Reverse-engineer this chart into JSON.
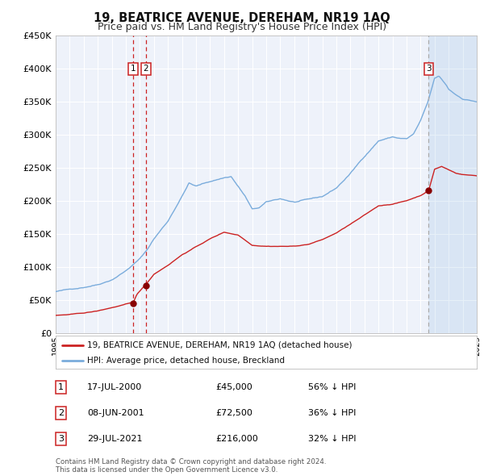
{
  "title": "19, BEATRICE AVENUE, DEREHAM, NR19 1AQ",
  "subtitle": "Price paid vs. HM Land Registry's House Price Index (HPI)",
  "ylim": [
    0,
    450000
  ],
  "yticks": [
    0,
    50000,
    100000,
    150000,
    200000,
    250000,
    300000,
    350000,
    400000,
    450000
  ],
  "ytick_labels": [
    "£0",
    "£50K",
    "£100K",
    "£150K",
    "£200K",
    "£250K",
    "£300K",
    "£350K",
    "£400K",
    "£450K"
  ],
  "hpi_color": "#7aacdc",
  "price_color": "#cc2222",
  "marker_color": "#880000",
  "vline_color": "#cc2222",
  "vline3_color": "#aaaaaa",
  "background_color": "#ffffff",
  "plot_bg_color": "#eef2fa",
  "grid_color": "#ffffff",
  "title_fontsize": 10.5,
  "subtitle_fontsize": 9,
  "legend_label_price": "19, BEATRICE AVENUE, DEREHAM, NR19 1AQ (detached house)",
  "legend_label_hpi": "HPI: Average price, detached house, Breckland",
  "transactions": [
    {
      "id": 1,
      "date": "17-JUL-2000",
      "price": 45000,
      "pct": "56% ↓ HPI",
      "x_year": 2000.54
    },
    {
      "id": 2,
      "date": "08-JUN-2001",
      "price": 72500,
      "pct": "36% ↓ HPI",
      "x_year": 2001.44
    },
    {
      "id": 3,
      "date": "29-JUL-2021",
      "price": 216000,
      "pct": "32% ↓ HPI",
      "x_year": 2021.58
    }
  ],
  "footnote1": "Contains HM Land Registry data © Crown copyright and database right 2024.",
  "footnote2": "This data is licensed under the Open Government Licence v3.0.",
  "xmin": 1995,
  "xmax": 2025,
  "hpi_key_years": [
    1995,
    1996,
    1997,
    1998,
    1999,
    2000,
    2001,
    2001.5,
    2002,
    2003,
    2004,
    2004.5,
    2005,
    2006,
    2007,
    2007.5,
    2008,
    2008.5,
    2009,
    2009.5,
    2010,
    2011,
    2012,
    2013,
    2014,
    2015,
    2016,
    2017,
    2018,
    2019,
    2019.5,
    2020,
    2020.5,
    2021,
    2021.5,
    2022,
    2022.3,
    2022.8,
    2023,
    2023.5,
    2024,
    2025
  ],
  "hpi_key_prices": [
    63000,
    66000,
    70000,
    75000,
    83000,
    97000,
    115000,
    128000,
    145000,
    172000,
    210000,
    230000,
    225000,
    232000,
    238000,
    240000,
    225000,
    210000,
    190000,
    192000,
    200000,
    205000,
    200000,
    203000,
    207000,
    220000,
    242000,
    268000,
    292000,
    298000,
    296000,
    295000,
    302000,
    322000,
    348000,
    385000,
    388000,
    375000,
    368000,
    360000,
    354000,
    350000
  ],
  "prop_key_years": [
    1995,
    1996,
    1997,
    1998,
    1999,
    2000,
    2000.54,
    2000.8,
    2001.44,
    2002,
    2003,
    2004,
    2005,
    2006,
    2007,
    2008,
    2009,
    2010,
    2011,
    2012,
    2013,
    2014,
    2015,
    2016,
    2017,
    2018,
    2019,
    2020,
    2021,
    2021.58,
    2022,
    2022.5,
    2023,
    2023.5,
    2024,
    2025
  ],
  "prop_key_prices": [
    27000,
    28000,
    30000,
    33000,
    38000,
    43000,
    45000,
    58000,
    72500,
    88000,
    102000,
    118000,
    130000,
    142000,
    152000,
    148000,
    133000,
    132000,
    132000,
    132000,
    135000,
    142000,
    152000,
    165000,
    178000,
    192000,
    195000,
    200000,
    208000,
    216000,
    248000,
    252000,
    247000,
    242000,
    240000,
    238000
  ]
}
